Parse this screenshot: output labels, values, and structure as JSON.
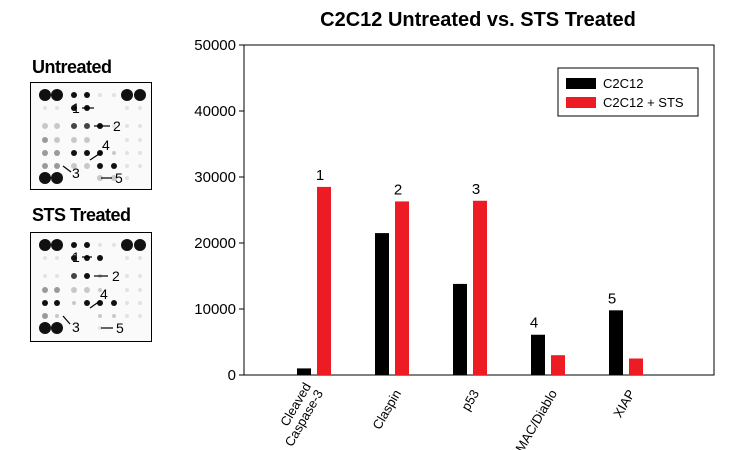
{
  "blots": {
    "untreated_title": "Untreated",
    "sts_title": "STS Treated",
    "marker_labels": [
      "1",
      "2",
      "3",
      "4",
      "5"
    ]
  },
  "chart_data": {
    "type": "bar",
    "title": "C2C12 Untreated vs. STS Treated",
    "xlabel": "",
    "ylabel": "",
    "categories": [
      "Cleaved Caspase-3",
      "Claspin",
      "p53",
      "SMAC/Diablo",
      "XIAP"
    ],
    "category_label_lines": [
      [
        "Cleaved",
        "Caspase-3"
      ],
      [
        "Claspin"
      ],
      [
        "p53"
      ],
      [
        "SMAC/Diablo"
      ],
      [
        "XIAP"
      ]
    ],
    "series": [
      {
        "name": "C2C12",
        "color": "#000000",
        "values": [
          1000,
          21500,
          13800,
          6100,
          9800
        ]
      },
      {
        "name": "C2C12 + STS",
        "color": "#ed1c24",
        "values": [
          28500,
          26300,
          26400,
          3000,
          2500
        ]
      }
    ],
    "bar_annotations": [
      "1",
      "2",
      "3",
      "4",
      "5"
    ],
    "ylim": [
      0,
      50000
    ],
    "yticks": [
      0,
      10000,
      20000,
      30000,
      40000,
      50000
    ],
    "grid": false,
    "legend_position": "top-right"
  }
}
